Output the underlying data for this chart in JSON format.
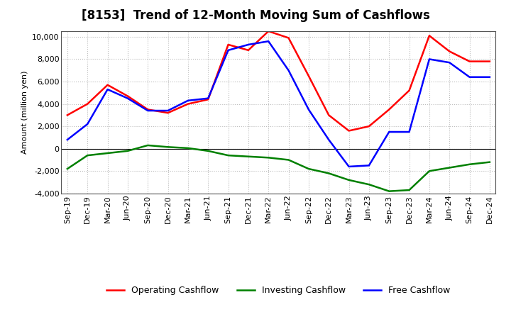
{
  "title": "[8153]  Trend of 12-Month Moving Sum of Cashflows",
  "ylabel": "Amount (million yen)",
  "x_labels": [
    "Sep-19",
    "Dec-19",
    "Mar-20",
    "Jun-20",
    "Sep-20",
    "Dec-20",
    "Mar-21",
    "Jun-21",
    "Sep-21",
    "Dec-21",
    "Mar-22",
    "Jun-22",
    "Sep-22",
    "Dec-22",
    "Mar-23",
    "Jun-23",
    "Sep-23",
    "Dec-23",
    "Mar-24",
    "Jun-24",
    "Sep-24",
    "Dec-24"
  ],
  "operating_cashflow": [
    3000,
    4000,
    5700,
    4700,
    3500,
    3200,
    4000,
    4400,
    9300,
    8800,
    10500,
    9900,
    6500,
    3000,
    1600,
    2000,
    3500,
    5200,
    10100,
    8700,
    7800,
    7800
  ],
  "investing_cashflow": [
    -1800,
    -600,
    -400,
    -200,
    300,
    150,
    50,
    -200,
    -600,
    -700,
    -800,
    -1000,
    -1800,
    -2200,
    -2800,
    -3200,
    -3800,
    -3700,
    -2000,
    -1700,
    -1400,
    -1200
  ],
  "free_cashflow": [
    800,
    2200,
    5300,
    4500,
    3400,
    3400,
    4300,
    4500,
    8800,
    9300,
    9600,
    7000,
    3500,
    800,
    -1600,
    -1500,
    1500,
    1500,
    8000,
    7700,
    6400,
    6400
  ],
  "operating_color": "#FF0000",
  "investing_color": "#008000",
  "free_color": "#0000FF",
  "ylim": [
    -4000,
    10500
  ],
  "yticks": [
    -4000,
    -2000,
    0,
    2000,
    4000,
    6000,
    8000,
    10000
  ],
  "background_color": "#FFFFFF",
  "grid_color": "#BBBBBB",
  "title_fontsize": 12,
  "axis_fontsize": 8,
  "legend_fontsize": 9,
  "line_width": 1.8
}
